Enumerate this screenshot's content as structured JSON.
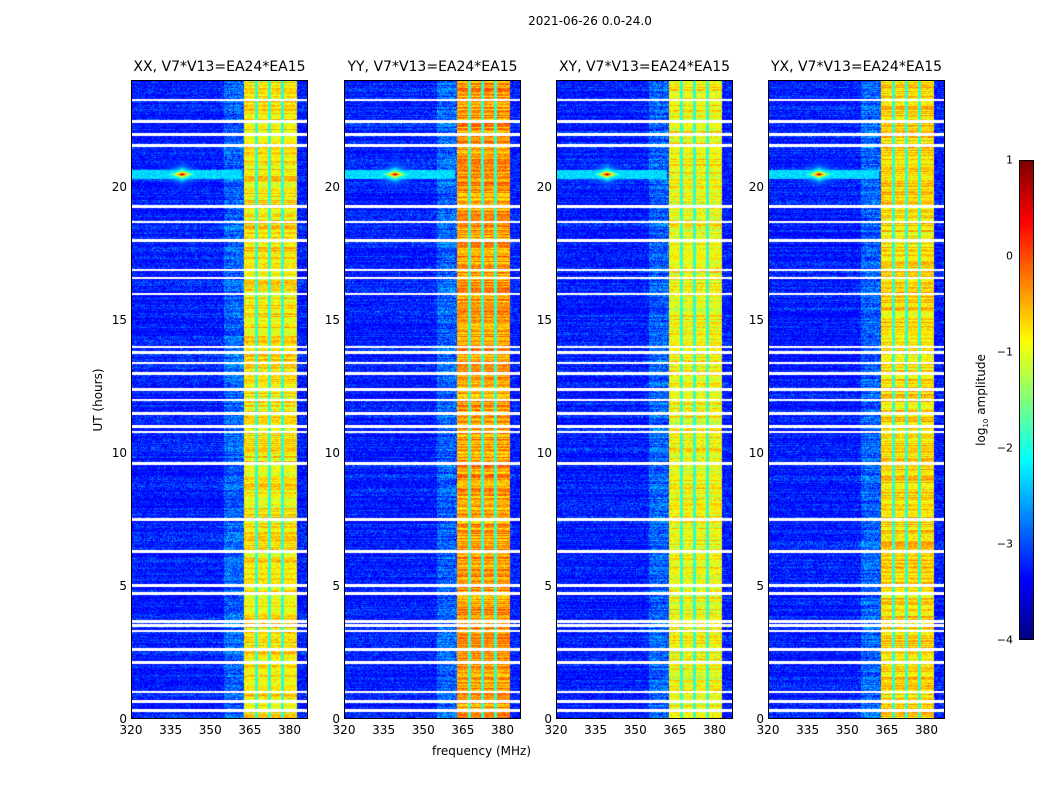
{
  "chart_data": {
    "type": "heatmap",
    "title": "2021-06-26 0.0-24.0",
    "xlabel": "frequency (MHz)",
    "ylabel": "UT (hours)",
    "xlim": [
      320,
      387
    ],
    "ylim": [
      0,
      24
    ],
    "xticks": [
      320,
      335,
      350,
      365,
      380
    ],
    "yticks": [
      0,
      5,
      10,
      15,
      20
    ],
    "panels": [
      {
        "title": "XX, V7*V13=EA24*EA15",
        "band_level": -0.8
      },
      {
        "title": "YY, V7*V13=EA24*EA15",
        "band_level": -0.4
      },
      {
        "title": "XY, V7*V13=EA24*EA15",
        "band_level": -0.9
      },
      {
        "title": "YX, V7*V13=EA24*EA15",
        "band_level": -0.7
      }
    ],
    "background_level": -3.3,
    "band_range_mhz": [
      362.5,
      383
    ],
    "band_gaps_mhz": [
      367.5,
      372.5,
      377.5
    ],
    "rfi_source": {
      "freq_mhz": 339,
      "ut_hours": 20.5,
      "level": 0.6
    },
    "flagged_ut_hours": [
      0.3,
      0.65,
      1.0,
      2.1,
      2.6,
      3.3,
      3.5,
      3.65,
      4.7,
      5.0,
      6.3,
      7.5,
      9.6,
      10.8,
      11.0,
      11.5,
      12.0,
      12.4,
      13.0,
      13.4,
      13.8,
      14.0,
      16.0,
      16.6,
      16.9,
      18.0,
      18.7,
      19.3,
      21.6,
      22.0,
      22.5,
      23.3
    ],
    "colorbar": {
      "label": "log10 amplitude",
      "label_base": "log",
      "label_sub": "10",
      "label_rest": " amplitude",
      "range": [
        -4,
        1
      ],
      "ticks": [
        "1",
        "0",
        "−1",
        "−2",
        "−3",
        "−4"
      ],
      "colormap": "jet"
    }
  }
}
